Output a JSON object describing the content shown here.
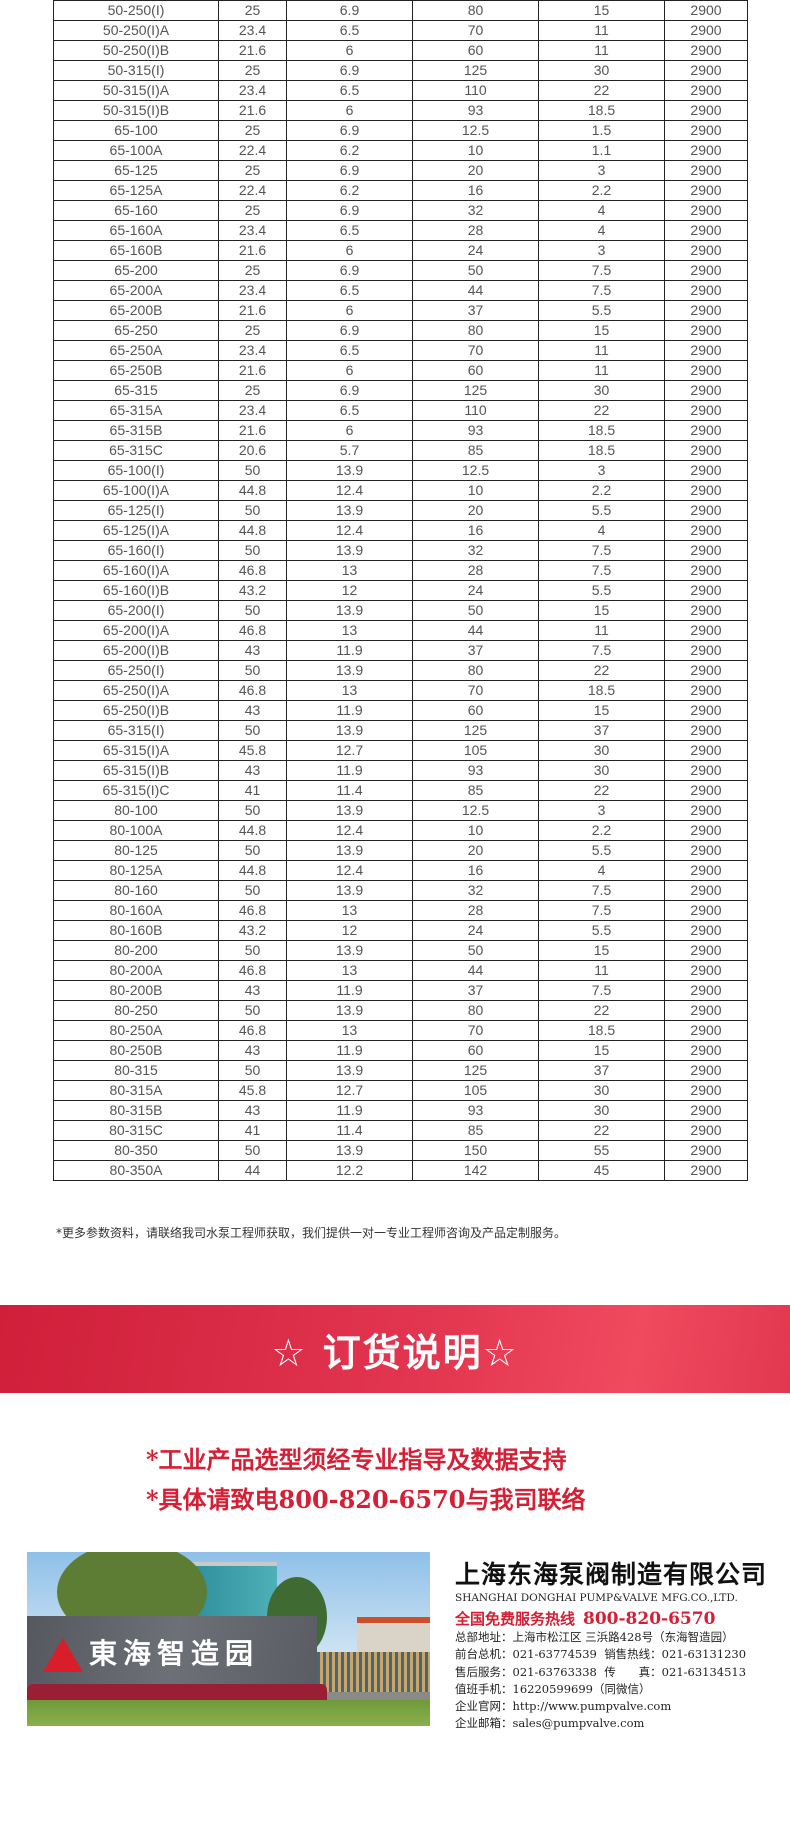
{
  "table": {
    "rows": [
      [
        "50-250(I)",
        "25",
        "6.9",
        "80",
        "15",
        "2900"
      ],
      [
        "50-250(I)A",
        "23.4",
        "6.5",
        "70",
        "11",
        "2900"
      ],
      [
        "50-250(I)B",
        "21.6",
        "6",
        "60",
        "11",
        "2900"
      ],
      [
        "50-315(I)",
        "25",
        "6.9",
        "125",
        "30",
        "2900"
      ],
      [
        "50-315(I)A",
        "23.4",
        "6.5",
        "110",
        "22",
        "2900"
      ],
      [
        "50-315(I)B",
        "21.6",
        "6",
        "93",
        "18.5",
        "2900"
      ],
      [
        "65-100",
        "25",
        "6.9",
        "12.5",
        "1.5",
        "2900"
      ],
      [
        "65-100A",
        "22.4",
        "6.2",
        "10",
        "1.1",
        "2900"
      ],
      [
        "65-125",
        "25",
        "6.9",
        "20",
        "3",
        "2900"
      ],
      [
        "65-125A",
        "22.4",
        "6.2",
        "16",
        "2.2",
        "2900"
      ],
      [
        "65-160",
        "25",
        "6.9",
        "32",
        "4",
        "2900"
      ],
      [
        "65-160A",
        "23.4",
        "6.5",
        "28",
        "4",
        "2900"
      ],
      [
        "65-160B",
        "21.6",
        "6",
        "24",
        "3",
        "2900"
      ],
      [
        "65-200",
        "25",
        "6.9",
        "50",
        "7.5",
        "2900"
      ],
      [
        "65-200A",
        "23.4",
        "6.5",
        "44",
        "7.5",
        "2900"
      ],
      [
        "65-200B",
        "21.6",
        "6",
        "37",
        "5.5",
        "2900"
      ],
      [
        "65-250",
        "25",
        "6.9",
        "80",
        "15",
        "2900"
      ],
      [
        "65-250A",
        "23.4",
        "6.5",
        "70",
        "11",
        "2900"
      ],
      [
        "65-250B",
        "21.6",
        "6",
        "60",
        "11",
        "2900"
      ],
      [
        "65-315",
        "25",
        "6.9",
        "125",
        "30",
        "2900"
      ],
      [
        "65-315A",
        "23.4",
        "6.5",
        "110",
        "22",
        "2900"
      ],
      [
        "65-315B",
        "21.6",
        "6",
        "93",
        "18.5",
        "2900"
      ],
      [
        "65-315C",
        "20.6",
        "5.7",
        "85",
        "18.5",
        "2900"
      ],
      [
        "65-100(I)",
        "50",
        "13.9",
        "12.5",
        "3",
        "2900"
      ],
      [
        "65-100(I)A",
        "44.8",
        "12.4",
        "10",
        "2.2",
        "2900"
      ],
      [
        "65-125(I)",
        "50",
        "13.9",
        "20",
        "5.5",
        "2900"
      ],
      [
        "65-125(I)A",
        "44.8",
        "12.4",
        "16",
        "4",
        "2900"
      ],
      [
        "65-160(I)",
        "50",
        "13.9",
        "32",
        "7.5",
        "2900"
      ],
      [
        "65-160(I)A",
        "46.8",
        "13",
        "28",
        "7.5",
        "2900"
      ],
      [
        "65-160(I)B",
        "43.2",
        "12",
        "24",
        "5.5",
        "2900"
      ],
      [
        "65-200(I)",
        "50",
        "13.9",
        "50",
        "15",
        "2900"
      ],
      [
        "65-200(I)A",
        "46.8",
        "13",
        "44",
        "11",
        "2900"
      ],
      [
        "65-200(I)B",
        "43",
        "11.9",
        "37",
        "7.5",
        "2900"
      ],
      [
        "65-250(I)",
        "50",
        "13.9",
        "80",
        "22",
        "2900"
      ],
      [
        "65-250(I)A",
        "46.8",
        "13",
        "70",
        "18.5",
        "2900"
      ],
      [
        "65-250(I)B",
        "43",
        "11.9",
        "60",
        "15",
        "2900"
      ],
      [
        "65-315(I)",
        "50",
        "13.9",
        "125",
        "37",
        "2900"
      ],
      [
        "65-315(I)A",
        "45.8",
        "12.7",
        "105",
        "30",
        "2900"
      ],
      [
        "65-315(I)B",
        "43",
        "11.9",
        "93",
        "30",
        "2900"
      ],
      [
        "65-315(I)C",
        "41",
        "11.4",
        "85",
        "22",
        "2900"
      ],
      [
        "80-100",
        "50",
        "13.9",
        "12.5",
        "3",
        "2900"
      ],
      [
        "80-100A",
        "44.8",
        "12.4",
        "10",
        "2.2",
        "2900"
      ],
      [
        "80-125",
        "50",
        "13.9",
        "20",
        "5.5",
        "2900"
      ],
      [
        "80-125A",
        "44.8",
        "12.4",
        "16",
        "4",
        "2900"
      ],
      [
        "80-160",
        "50",
        "13.9",
        "32",
        "7.5",
        "2900"
      ],
      [
        "80-160A",
        "46.8",
        "13",
        "28",
        "7.5",
        "2900"
      ],
      [
        "80-160B",
        "43.2",
        "12",
        "24",
        "5.5",
        "2900"
      ],
      [
        "80-200",
        "50",
        "13.9",
        "50",
        "15",
        "2900"
      ],
      [
        "80-200A",
        "46.8",
        "13",
        "44",
        "11",
        "2900"
      ],
      [
        "80-200B",
        "43",
        "11.9",
        "37",
        "7.5",
        "2900"
      ],
      [
        "80-250",
        "50",
        "13.9",
        "80",
        "22",
        "2900"
      ],
      [
        "80-250A",
        "46.8",
        "13",
        "70",
        "18.5",
        "2900"
      ],
      [
        "80-250B",
        "43",
        "11.9",
        "60",
        "15",
        "2900"
      ],
      [
        "80-315",
        "50",
        "13.9",
        "125",
        "37",
        "2900"
      ],
      [
        "80-315A",
        "45.8",
        "12.7",
        "105",
        "30",
        "2900"
      ],
      [
        "80-315B",
        "43",
        "11.9",
        "93",
        "30",
        "2900"
      ],
      [
        "80-315C",
        "41",
        "11.4",
        "85",
        "22",
        "2900"
      ],
      [
        "80-350",
        "50",
        "13.9",
        "150",
        "55",
        "2900"
      ],
      [
        "80-350A",
        "44",
        "12.2",
        "142",
        "45",
        "2900"
      ]
    ]
  },
  "note": "*更多参数资料，请联络我司水泵工程师获取，我们提供一对一专业工程师咨询及产品定制服务。",
  "banner": {
    "title": "☆ 订货说明☆",
    "color": "#e0314b"
  },
  "order_notes": [
    "*工业产品选型须经专业指导及数据支持",
    "*具体请致电800-820-6570与我司联络"
  ],
  "photo": {
    "logo_text": "東海智造园"
  },
  "company": {
    "name_cn": "上海东海泵阀制造有限公司",
    "name_en": "SHANGHAI DONGHAI PUMP&VALVE MFG.CO.,LTD.",
    "hotline_label": "全国免费服务热线",
    "hotline": "800-820-6570",
    "address": "总部地址：上海市松江区 三浜路428号（东海智造园）",
    "front_desk": "前台总机：021-63774539",
    "sales": "销售热线：021-63131230",
    "after_sales": "售后服务：021-63763338",
    "fax": "传　　真：021-63134513",
    "mobile": "值班手机：16220599699（同微信）",
    "website": "企业官网：http://www.pumpvalve.com",
    "email": "企业邮箱：sales@pumpvalve.com"
  }
}
